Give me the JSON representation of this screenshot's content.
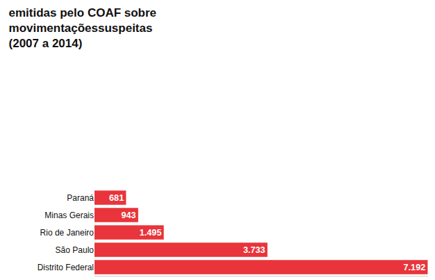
{
  "chart_data": {
    "type": "bar",
    "title": "emitidas pelo COAF sobre\nmovimentaçõessuspeitas\n(2007 a 2014)",
    "orientation": "horizontal",
    "categories": [
      "Paraná",
      "Minas Gerais",
      "Rio de Janeiro",
      "São Paulo",
      "Distrito Federal"
    ],
    "values": [
      681,
      943,
      1495,
      3733,
      7192
    ],
    "value_labels": [
      "681",
      "943",
      "1.495",
      "3.733",
      "7.192"
    ],
    "color": "#e8343a",
    "xlim": [
      0,
      7200
    ],
    "data_labels": true,
    "tick_labels": "y",
    "grid": false
  }
}
